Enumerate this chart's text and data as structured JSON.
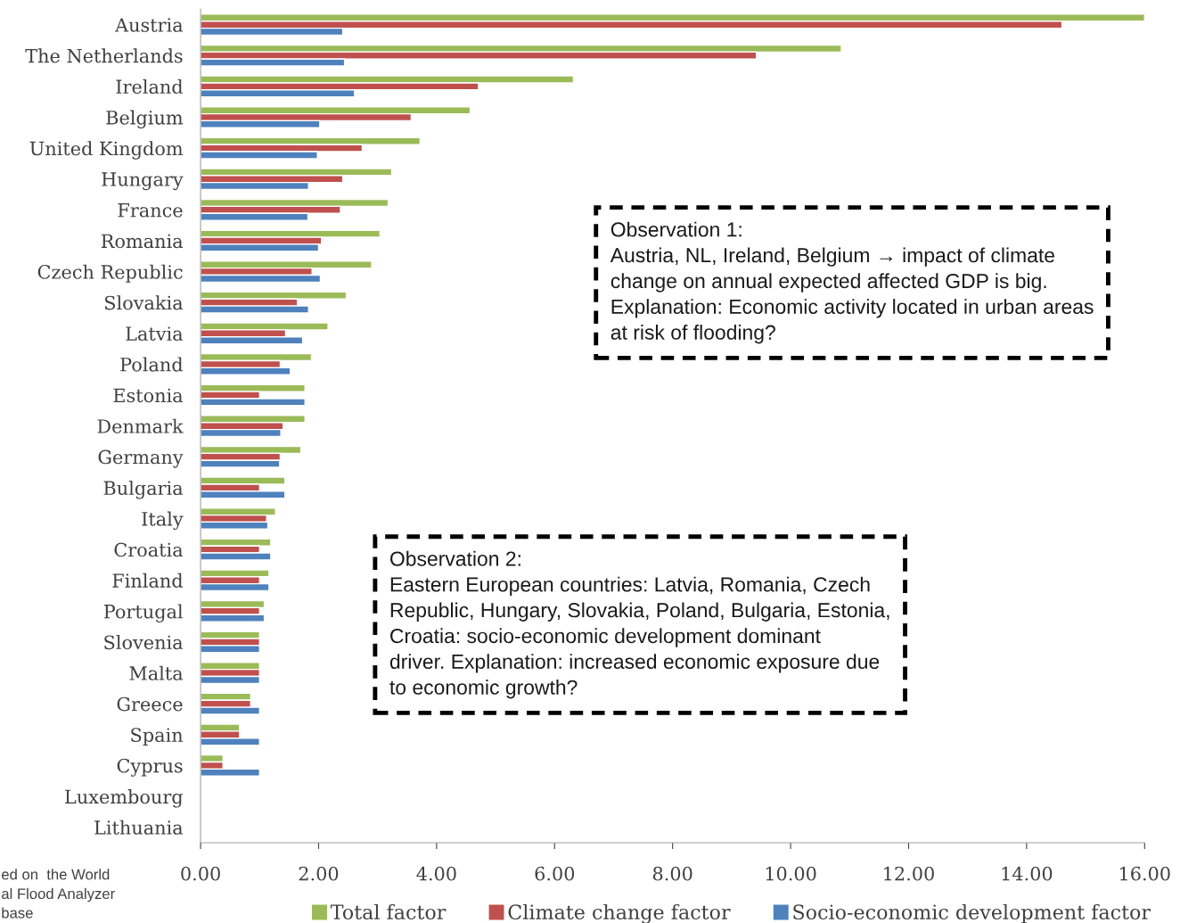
{
  "chart_data": {
    "type": "bar",
    "orientation": "horizontal",
    "categories": [
      "Austria",
      "The Netherlands",
      "Ireland",
      "Belgium",
      "United Kingdom",
      "Hungary",
      "France",
      "Romania",
      "Czech Republic",
      "Slovakia",
      "Latvia",
      "Poland",
      "Estonia",
      "Denmark",
      "Germany",
      "Bulgaria",
      "Italy",
      "Croatia",
      "Finland",
      "Portugal",
      "Slovenia",
      "Malta",
      "Greece",
      "Spain",
      "Cyprus",
      "Luxembourg",
      "Lithuania"
    ],
    "series": [
      {
        "name": "Total factor",
        "color": "#9bbb59",
        "values": [
          16.0,
          10.86,
          6.32,
          4.57,
          3.72,
          3.24,
          3.18,
          3.04,
          2.9,
          2.47,
          2.16,
          1.88,
          1.77,
          1.77,
          1.7,
          1.43,
          1.27,
          1.19,
          1.16,
          1.08,
          1.0,
          1.0,
          0.85,
          0.66,
          0.38,
          null,
          null
        ]
      },
      {
        "name": "Climate change factor",
        "color": "#c0504d",
        "values": [
          14.6,
          9.42,
          4.71,
          3.57,
          2.74,
          2.41,
          2.37,
          2.05,
          1.89,
          1.64,
          1.44,
          1.35,
          1.0,
          1.4,
          1.35,
          1.0,
          1.12,
          1.0,
          1.0,
          1.0,
          1.0,
          1.0,
          0.85,
          0.66,
          0.38,
          null,
          null
        ]
      },
      {
        "name": "Socio-economic development factor",
        "color": "#4f81bd",
        "values": [
          2.41,
          2.44,
          2.61,
          2.02,
          1.98,
          1.83,
          1.82,
          2.0,
          2.03,
          1.83,
          1.73,
          1.52,
          1.77,
          1.36,
          1.34,
          1.43,
          1.14,
          1.19,
          1.16,
          1.08,
          1.0,
          1.0,
          1.0,
          1.0,
          1.0,
          null,
          null
        ]
      }
    ],
    "xlim": [
      0,
      16
    ],
    "xticks": [
      {
        "value": 0,
        "label": "0.00"
      },
      {
        "value": 2,
        "label": "2.00"
      },
      {
        "value": 4,
        "label": "4.00"
      },
      {
        "value": 6,
        "label": "6.00"
      },
      {
        "value": 8,
        "label": "8.00"
      },
      {
        "value": 10,
        "label": "10.00"
      },
      {
        "value": 12,
        "label": "12.00"
      },
      {
        "value": 14,
        "label": "14.00"
      },
      {
        "value": 16,
        "label": "16.00"
      }
    ],
    "grid": false,
    "legend": "bottom",
    "annotations": [
      "Observation 1:\nAustria, NL, Ireland, Belgium → impact of climate\nchange on annual expected affected GDP is big.\nExplanation: Economic activity located in urban areas\nat risk of flooding?",
      "Observation 2:\nEastern European countries: Latvia, Romania, Czech\nRepublic, Hungary, Slovakia, Poland, Bulgaria, Estonia,\nCroatia: socio-economic development dominant\ndriver. Explanation: increased economic exposure due\nto economic growth?",
      "ed on  the World\nal Flood Analyzer\nbase"
    ]
  }
}
